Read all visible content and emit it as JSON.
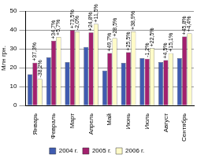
{
  "chart_data": {
    "type": "bar",
    "y_label": "Млн грн.",
    "categories": [
      "Январь",
      "Февраль",
      "Март",
      "Апрель",
      "Май",
      "Июнь",
      "Июль",
      "Август",
      "Сентябрь"
    ],
    "series": [
      {
        "name": "2004 г.",
        "color": "#3f5bb0",
        "values": [
          16.5,
          25.5,
          23,
          31,
          18.5,
          22.5,
          25,
          23,
          25
        ]
      },
      {
        "name": "2005 г.",
        "color": "#a3206e",
        "values": [
          22.6,
          34.3,
          39.9,
          38.7,
          27.7,
          28.2,
          24.7,
          24,
          36.5
        ]
      },
      {
        "name": "2006 г.",
        "color": "#fffbc8",
        "values": [
          14,
          36.3,
          39.1,
          43.1,
          35.6,
          39.2,
          30.3,
          27.6,
          38.1
        ]
      }
    ],
    "annotations": [
      {
        "category": "Январь",
        "series": "2005 г.",
        "text": "+37,3%"
      },
      {
        "category": "Январь",
        "series": "2006 г.",
        "text": "-38,2%"
      },
      {
        "category": "Февраль",
        "series": "2005 г.",
        "text": "+34,7%"
      },
      {
        "category": "Февраль",
        "series": "2006 г.",
        "text": "+5,7%"
      },
      {
        "category": "Март",
        "series": "2005 г.",
        "text": "+73,5%"
      },
      {
        "category": "Март",
        "series": "2006 г.",
        "text": "-2,0%"
      },
      {
        "category": "Апрель",
        "series": "2005 г.",
        "text": "+24,8%"
      },
      {
        "category": "Апрель",
        "series": "2006 г.",
        "text": "+11,5%"
      },
      {
        "category": "Май",
        "series": "2005 г.",
        "text": "+49,7%"
      },
      {
        "category": "Май",
        "series": "2006 г.",
        "text": "+28,5%"
      },
      {
        "category": "Июнь",
        "series": "2005 г.",
        "text": "+25,5%"
      },
      {
        "category": "Июнь",
        "series": "2006 г.",
        "text": "+38,9%"
      },
      {
        "category": "Июль",
        "series": "2005 г.",
        "text": "-1,2%"
      },
      {
        "category": "Июль",
        "series": "2006 г.",
        "text": "+22,5%"
      },
      {
        "category": "Август",
        "series": "2005 г.",
        "text": "+4,5%"
      },
      {
        "category": "Август",
        "series": "2006 г.",
        "text": "+15,1%"
      },
      {
        "category": "Сентябрь",
        "series": "2005 г.",
        "text": "+45,8%"
      },
      {
        "category": "Сентябрь",
        "series": "2006 г.",
        "text": "+4,4%"
      }
    ],
    "ylim": [
      0,
      50
    ],
    "yticks": [
      0,
      10,
      20,
      30,
      40,
      50
    ],
    "grid": true,
    "legend": "bottom"
  }
}
